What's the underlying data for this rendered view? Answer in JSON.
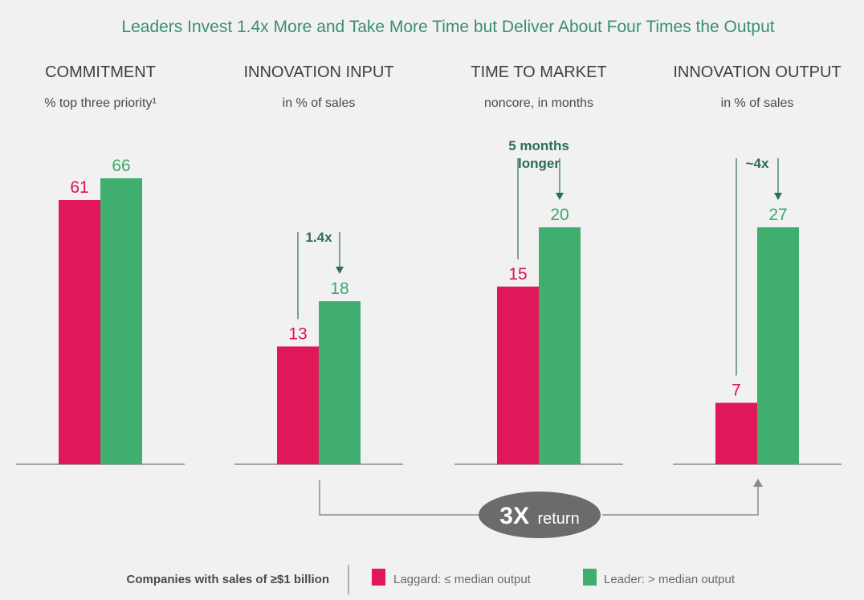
{
  "chart_data": {
    "type": "bar",
    "title": "Leaders Invest 1.4x More and Take More Time but Deliver About Four Times the Output",
    "panels": [
      {
        "title": "COMMITMENT",
        "subtitle": "% top three priority¹",
        "laggard": 61,
        "leader": 66,
        "annotation": []
      },
      {
        "title": "INNOVATION INPUT",
        "subtitle": "in % of sales",
        "laggard": 13,
        "leader": 18,
        "annotation": [
          "1.4x"
        ]
      },
      {
        "title": "TIME TO MARKET",
        "subtitle": "noncore, in months",
        "laggard": 15,
        "leader": 20,
        "annotation": [
          "5 months",
          "longer"
        ]
      },
      {
        "title": "INNOVATION OUTPUT",
        "subtitle": "in % of sales",
        "laggard": 7,
        "leader": 27,
        "annotation": [
          "~4x"
        ]
      }
    ],
    "series": [
      {
        "name": "Laggard: ≤ median output",
        "color": "#e0185a"
      },
      {
        "name": "Leader: > median output",
        "color": "#3fae6e"
      }
    ],
    "return_label": {
      "big": "3X",
      "small": "return"
    },
    "legend_heading": "Companies with sales of ≥$1 billion"
  }
}
